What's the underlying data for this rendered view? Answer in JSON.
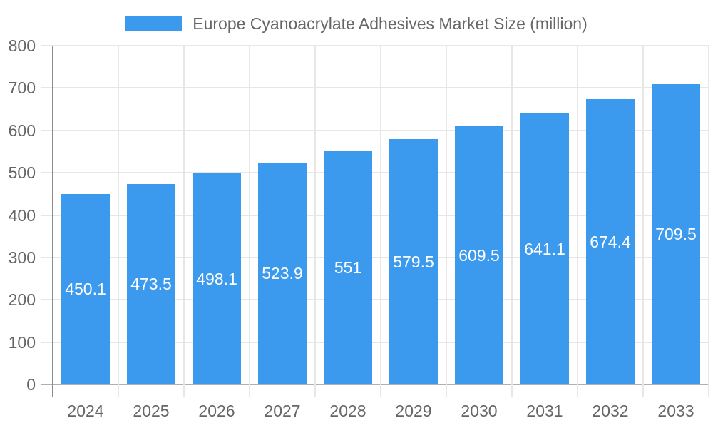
{
  "legend": {
    "label": "Europe Cyanoacrylate Adhesives Market Size (million)"
  },
  "colors": {
    "bar": "#3B99EE",
    "grid": "#E7E7E7",
    "baseline": "#B0B0B0",
    "axis_line": "#8C8C8C",
    "axis_text": "#666666",
    "bar_label_text": "#FFFFFF",
    "background": "#FFFFFF"
  },
  "chart_data": {
    "type": "bar",
    "title": "Europe Cyanoacrylate Adhesives Market Size (million)",
    "categories": [
      "2024",
      "2025",
      "2026",
      "2027",
      "2028",
      "2029",
      "2030",
      "2031",
      "2032",
      "2033"
    ],
    "values": [
      450.1,
      473.5,
      498.1,
      523.9,
      551,
      579.5,
      609.5,
      641.1,
      674.4,
      709.5
    ],
    "value_labels": [
      "450.1",
      "473.5",
      "498.1",
      "523.9",
      "551",
      "579.5",
      "609.5",
      "641.1",
      "674.4",
      "709.5"
    ],
    "xlabel": "",
    "ylabel": "",
    "ylim": [
      0,
      800
    ],
    "ytick_step": 100,
    "ytick_labels": [
      "0",
      "100",
      "200",
      "300",
      "400",
      "500",
      "600",
      "700",
      "800"
    ],
    "grid": true,
    "legend_position": "top",
    "bar_label_placement": "inside-center"
  }
}
